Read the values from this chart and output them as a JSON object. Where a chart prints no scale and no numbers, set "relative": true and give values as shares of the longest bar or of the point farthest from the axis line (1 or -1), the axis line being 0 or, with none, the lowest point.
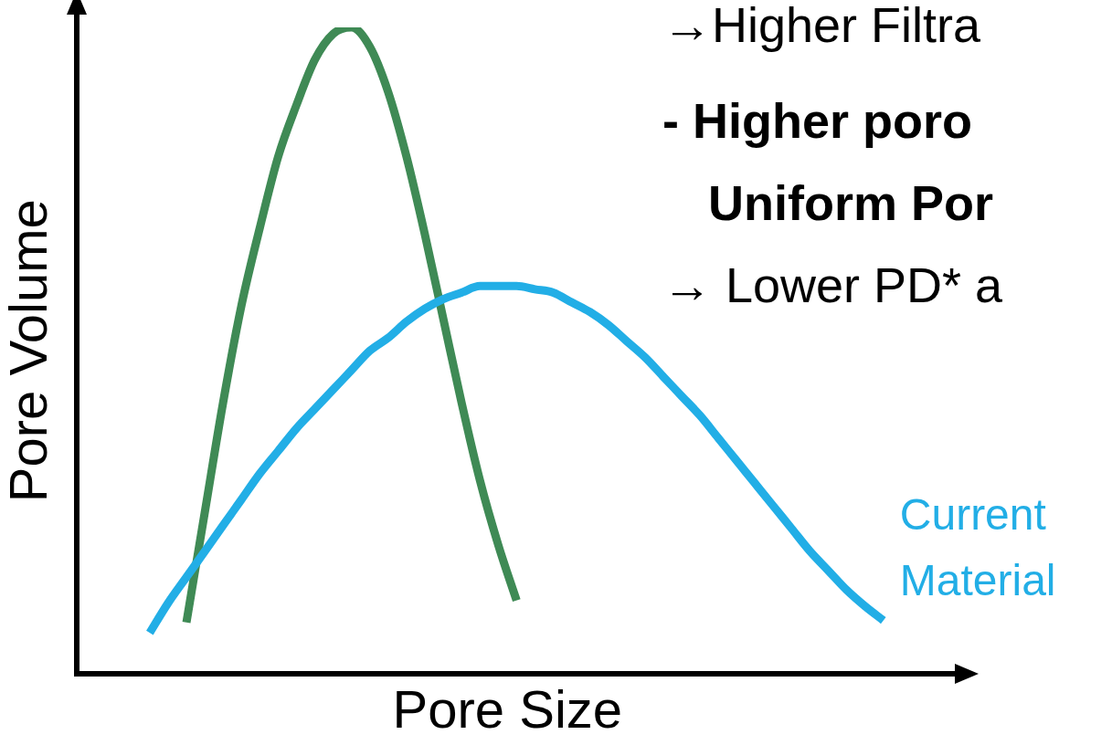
{
  "chart_data": {
    "type": "line",
    "relative": true,
    "xlabel": "Pore Size",
    "ylabel": "Pore Volume",
    "tick_labels": false,
    "grid": false,
    "legend": false,
    "marker": "none",
    "line_style": "solid",
    "categories": [
      null,
      null,
      null,
      null,
      null,
      null,
      null,
      null,
      null,
      null,
      null,
      null,
      null,
      null,
      null,
      null,
      null,
      null,
      null,
      null,
      null,
      null,
      null,
      null,
      null,
      null,
      null,
      null,
      null,
      null,
      null,
      null,
      null,
      null,
      null,
      null,
      null,
      null,
      null,
      null,
      null,
      null,
      null,
      null,
      null,
      null,
      null,
      null
    ],
    "series": [
      {
        "name": "Current Material",
        "color": "#22aee6",
        "values": [
          null,
          null,
          null,
          null,
          0.064,
          0.11,
          0.15,
          0.19,
          0.23,
          0.27,
          0.31,
          0.345,
          0.38,
          0.41,
          0.44,
          0.47,
          0.5,
          0.52,
          0.545,
          0.565,
          0.58,
          0.59,
          0.6,
          0.6,
          0.6,
          0.595,
          0.59,
          0.575,
          0.56,
          0.54,
          0.515,
          0.49,
          0.46,
          0.43,
          0.4,
          0.365,
          0.33,
          0.295,
          0.26,
          0.225,
          0.19,
          0.16,
          0.13,
          0.105,
          0.083,
          null,
          null,
          null
        ]
      },
      {
        "color": "#3f8a55",
        "values": [
          null,
          null,
          null,
          null,
          null,
          null,
          0.08,
          0.25,
          0.42,
          0.57,
          0.69,
          0.8,
          0.88,
          0.95,
          0.99,
          1.0,
          0.97,
          0.9,
          0.8,
          0.68,
          0.55,
          0.42,
          0.3,
          0.2,
          0.114,
          null,
          null,
          null,
          null,
          null,
          null,
          null,
          null,
          null,
          null,
          null,
          null,
          null,
          null,
          null,
          null,
          null,
          null,
          null,
          null,
          null,
          null,
          null
        ]
      }
    ],
    "annotations": [
      "→Higher Filtra",
      "- Higher poro",
      "Uniform Por",
      "→ Lower PD* a"
    ]
  }
}
